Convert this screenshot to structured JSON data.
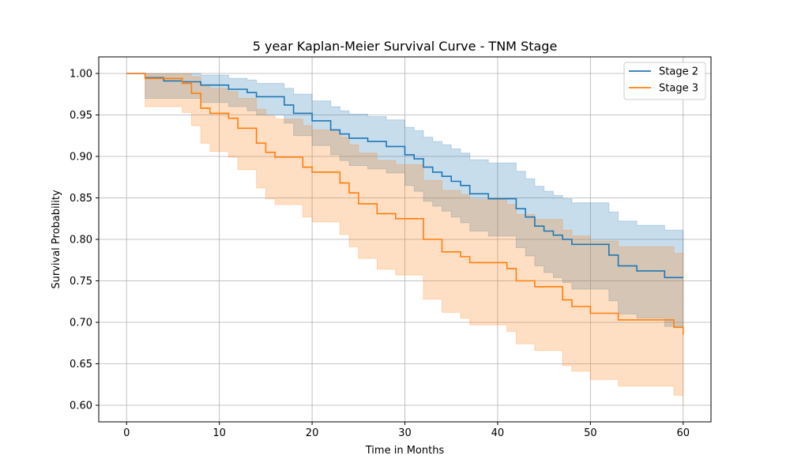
{
  "chart_data": {
    "type": "line",
    "title": "5 year Kaplan-Meier Survival Curve - TNM Stage",
    "xlabel": "Time in Months",
    "ylabel": "Survival Probability",
    "xlim": [
      -3,
      63
    ],
    "ylim": [
      0.58,
      1.02
    ],
    "xticks": [
      0,
      10,
      20,
      30,
      40,
      50,
      60
    ],
    "yticks": [
      0.6,
      0.65,
      0.7,
      0.75,
      0.8,
      0.85,
      0.9,
      0.95,
      1.0
    ],
    "xtick_labels": [
      "0",
      "10",
      "20",
      "30",
      "40",
      "50",
      "60"
    ],
    "ytick_labels": [
      "0.60",
      "0.65",
      "0.70",
      "0.75",
      "0.80",
      "0.85",
      "0.90",
      "0.95",
      "1.00"
    ],
    "grid": true,
    "legend_position": "top-right",
    "series": [
      {
        "name": "Stage 2",
        "color": "#1f77b4",
        "step": "post",
        "x": [
          0,
          2,
          4,
          6,
          8,
          11,
          13,
          14,
          17,
          18,
          20,
          22,
          23,
          24,
          26,
          28,
          30,
          31,
          32,
          33,
          34,
          35,
          36,
          37,
          39,
          42,
          43,
          44,
          45,
          46,
          47,
          48,
          52,
          53,
          55,
          58,
          60
        ],
        "y": [
          1.0,
          0.995,
          0.991,
          0.99,
          0.986,
          0.981,
          0.977,
          0.972,
          0.962,
          0.952,
          0.943,
          0.932,
          0.927,
          0.922,
          0.918,
          0.912,
          0.902,
          0.897,
          0.887,
          0.881,
          0.876,
          0.87,
          0.865,
          0.855,
          0.849,
          0.837,
          0.827,
          0.816,
          0.81,
          0.805,
          0.8,
          0.794,
          0.781,
          0.768,
          0.762,
          0.754,
          0.754
        ],
        "ci_lower": [
          1.0,
          0.97,
          0.97,
          0.97,
          0.965,
          0.96,
          0.955,
          0.95,
          0.94,
          0.925,
          0.913,
          0.902,
          0.895,
          0.889,
          0.885,
          0.88,
          0.865,
          0.858,
          0.846,
          0.84,
          0.834,
          0.827,
          0.82,
          0.81,
          0.804,
          0.79,
          0.78,
          0.768,
          0.76,
          0.754,
          0.748,
          0.74,
          0.726,
          0.71,
          0.705,
          0.695,
          0.695
        ],
        "ci_upper": [
          1.0,
          1.0,
          1.0,
          1.0,
          0.998,
          0.994,
          0.992,
          0.988,
          0.982,
          0.975,
          0.967,
          0.96,
          0.955,
          0.951,
          0.948,
          0.944,
          0.935,
          0.931,
          0.923,
          0.918,
          0.914,
          0.909,
          0.904,
          0.896,
          0.892,
          0.882,
          0.873,
          0.864,
          0.858,
          0.853,
          0.849,
          0.844,
          0.833,
          0.822,
          0.817,
          0.811,
          0.811
        ]
      },
      {
        "name": "Stage 3",
        "color": "#ff7f0e",
        "step": "post",
        "x": [
          0,
          2,
          6,
          7,
          8,
          9,
          11,
          12,
          14,
          15,
          16,
          19,
          20,
          23,
          24,
          25,
          27,
          29,
          32,
          34,
          36,
          37,
          41,
          42,
          44,
          47,
          48,
          50,
          53,
          59,
          60
        ],
        "y": [
          1.0,
          0.994,
          0.988,
          0.976,
          0.958,
          0.952,
          0.946,
          0.934,
          0.916,
          0.905,
          0.899,
          0.887,
          0.881,
          0.868,
          0.856,
          0.843,
          0.831,
          0.825,
          0.8,
          0.785,
          0.779,
          0.772,
          0.765,
          0.75,
          0.743,
          0.727,
          0.719,
          0.711,
          0.703,
          0.694,
          0.685
        ],
        "ci_lower": [
          1.0,
          0.96,
          0.953,
          0.937,
          0.916,
          0.906,
          0.899,
          0.884,
          0.862,
          0.849,
          0.842,
          0.827,
          0.821,
          0.806,
          0.791,
          0.777,
          0.764,
          0.757,
          0.728,
          0.712,
          0.705,
          0.697,
          0.689,
          0.674,
          0.666,
          0.648,
          0.641,
          0.631,
          0.623,
          0.612,
          0.6
        ],
        "ci_upper": [
          1.0,
          1.0,
          1.0,
          0.996,
          0.986,
          0.982,
          0.978,
          0.97,
          0.957,
          0.949,
          0.945,
          0.937,
          0.932,
          0.923,
          0.914,
          0.904,
          0.895,
          0.89,
          0.871,
          0.859,
          0.854,
          0.848,
          0.842,
          0.83,
          0.824,
          0.811,
          0.804,
          0.798,
          0.791,
          0.783,
          0.776
        ]
      }
    ]
  }
}
